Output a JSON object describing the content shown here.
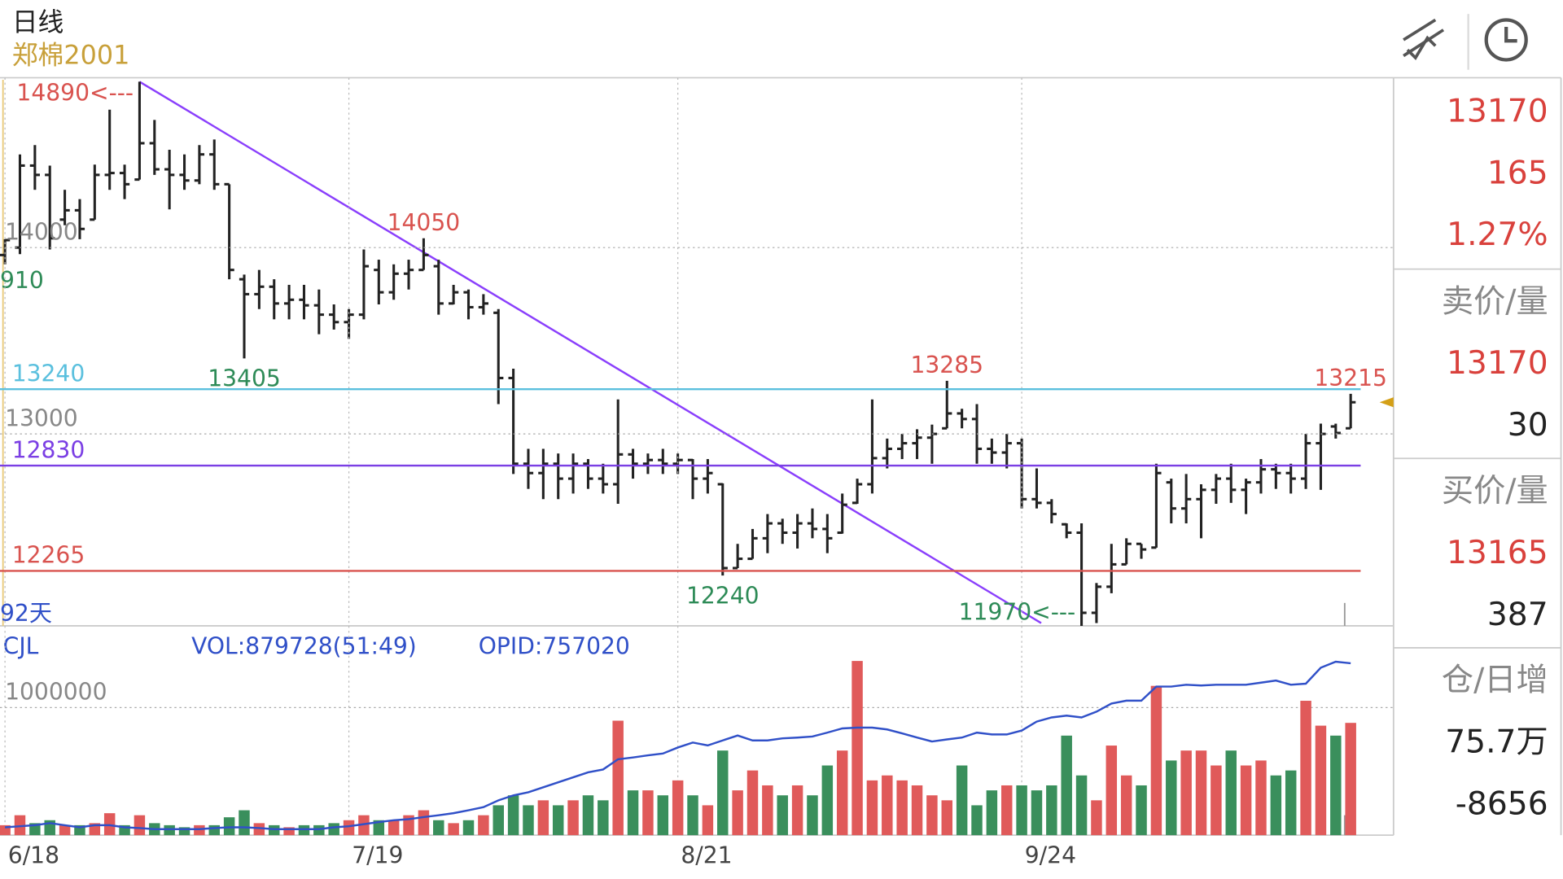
{
  "header": {
    "title": "日线",
    "symbol": "郑棉2001"
  },
  "chart_data": [
    {
      "type": "ohlc",
      "color": "#222222",
      "categories": [
        "6/18",
        null,
        null,
        null,
        null,
        null,
        null,
        null,
        null,
        null,
        null,
        null,
        null,
        null,
        null,
        null,
        null,
        null,
        null,
        null,
        null,
        null,
        null,
        "7/19",
        null,
        null,
        null,
        null,
        null,
        null,
        null,
        null,
        null,
        null,
        null,
        null,
        null,
        null,
        null,
        null,
        null,
        null,
        null,
        null,
        null,
        "8/21",
        null,
        null,
        null,
        null,
        null,
        null,
        null,
        null,
        null,
        null,
        null,
        null,
        null,
        null,
        null,
        null,
        null,
        null,
        null,
        null,
        null,
        null,
        "9/24",
        null,
        null,
        null,
        null,
        null,
        null,
        null,
        null,
        null,
        null,
        null,
        null,
        null,
        null,
        null,
        null,
        null,
        null,
        null,
        null,
        null,
        null
      ],
      "open": [
        13960,
        14000,
        14440,
        14390,
        14150,
        14200,
        14150,
        14390,
        14400,
        14365,
        14560,
        14420,
        14390,
        14360,
        14500,
        14340,
        13830,
        13750,
        13790,
        13700,
        13720,
        13690,
        13640,
        13600,
        13640,
        13880,
        13760,
        13860,
        13880,
        13900,
        13700,
        13760,
        13680,
        13650,
        13300,
        12840,
        12790,
        12840,
        12760,
        12840,
        12760,
        12730,
        12890,
        12840,
        12860,
        12840,
        12860,
        12760,
        12730,
        12280,
        12330,
        12440,
        12520,
        12470,
        12520,
        12490,
        12470,
        12630,
        12730,
        12870,
        12920,
        12950,
        12980,
        13030,
        13110,
        13080,
        12920,
        12900,
        12950,
        12650,
        12630,
        12515,
        12470,
        12040,
        12180,
        12300,
        12410,
        12390,
        12740,
        12600,
        12650,
        12700,
        12760,
        12700,
        12740,
        12810,
        12790,
        12760,
        12950,
        13040,
        13030
      ],
      "high": [
        14045,
        14500,
        14550,
        14440,
        14310,
        14260,
        14445,
        14740,
        14445,
        14890,
        14685,
        14525,
        14500,
        14550,
        14580,
        14340,
        13855,
        13880,
        13830,
        13800,
        13800,
        13775,
        13695,
        13670,
        13990,
        13935,
        13910,
        13935,
        14050,
        13935,
        13800,
        13775,
        13750,
        13670,
        13350,
        12920,
        12920,
        12895,
        12895,
        12865,
        12840,
        13185,
        12920,
        12895,
        12920,
        12895,
        12865,
        12865,
        12735,
        12410,
        12490,
        12570,
        12545,
        12570,
        12600,
        12570,
        12680,
        12760,
        13185,
        12975,
        13000,
        13025,
        13050,
        13285,
        13135,
        13160,
        12975,
        13000,
        12975,
        12815,
        12650,
        12520,
        12520,
        12200,
        12410,
        12440,
        12410,
        12840,
        12760,
        12785,
        12730,
        12785,
        12840,
        12760,
        12865,
        12840,
        12840,
        13000,
        13055,
        13055,
        13215
      ],
      "low": [
        13910,
        13965,
        14310,
        13990,
        14120,
        14045,
        14150,
        14310,
        14260,
        14365,
        14390,
        14205,
        14310,
        14340,
        14310,
        13830,
        13405,
        13670,
        13615,
        13615,
        13615,
        13535,
        13560,
        13510,
        13615,
        13695,
        13720,
        13775,
        13880,
        13640,
        13695,
        13615,
        13640,
        13160,
        12785,
        12705,
        12650,
        12650,
        12680,
        12705,
        12680,
        12625,
        12760,
        12785,
        12785,
        12785,
        12650,
        12680,
        12240,
        12280,
        12330,
        12360,
        12410,
        12385,
        12440,
        12360,
        12465,
        12625,
        12680,
        12815,
        12865,
        12865,
        12840,
        13030,
        13030,
        12840,
        12840,
        12815,
        12600,
        12600,
        12520,
        12440,
        11970,
        11985,
        12145,
        12300,
        12330,
        12390,
        12520,
        12520,
        12440,
        12625,
        12630,
        12570,
        12680,
        12705,
        12680,
        12705,
        12700,
        12975,
        13030
      ],
      "close": [
        14040,
        14440,
        14390,
        14050,
        14200,
        14100,
        14390,
        14400,
        14340,
        14560,
        14420,
        14390,
        14360,
        14500,
        14340,
        13880,
        13750,
        13790,
        13700,
        13720,
        13690,
        13640,
        13600,
        13640,
        13900,
        13760,
        13860,
        13880,
        13960,
        13700,
        13760,
        13680,
        13700,
        13300,
        12840,
        12790,
        12840,
        12760,
        12840,
        12760,
        12730,
        12890,
        12840,
        12860,
        12840,
        12860,
        12760,
        12790,
        12280,
        12330,
        12440,
        12520,
        12470,
        12520,
        12490,
        12440,
        12620,
        12730,
        12870,
        12920,
        12950,
        12980,
        13000,
        13110,
        13080,
        12920,
        12900,
        12950,
        12650,
        12630,
        12570,
        12470,
        12040,
        12180,
        12300,
        12410,
        12380,
        12790,
        12600,
        12650,
        12700,
        12760,
        12700,
        12740,
        12810,
        12790,
        12760,
        12950,
        13000,
        13005,
        13170
      ],
      "ylim": [
        11970,
        14890
      ],
      "yticks": [
        13000,
        14000
      ],
      "grid": true,
      "tick_color": "#888888",
      "hlines": [
        {
          "value": 13240,
          "color": "#5bc0de"
        },
        {
          "value": 12830,
          "color": "#7b3fe4"
        },
        {
          "value": 12265,
          "color": "#d9534f"
        }
      ],
      "trend_line": {
        "x": [
          9,
          69.3
        ],
        "y": [
          14890,
          11985
        ],
        "color": "#8a3ffc"
      },
      "annotations": [
        {
          "x": 9,
          "value": 14890,
          "label": "14890<---",
          "color": "#d9534f"
        },
        {
          "x": 28,
          "value": 14050,
          "label": "14050",
          "color": "#d9534f"
        },
        {
          "x": 16,
          "value": 13405,
          "label": "13405",
          "color": "#2e8b57"
        },
        {
          "x": 63,
          "value": 13285,
          "label": "13285",
          "color": "#d9534f"
        },
        {
          "x": 90,
          "value": 13215,
          "label": "13215",
          "color": "#d9534f"
        },
        {
          "x": 48,
          "value": 12240,
          "label": "12240",
          "color": "#2e8b57"
        },
        {
          "x": 72,
          "value": 11970,
          "label": "11970<---",
          "color": "#2e8b57"
        }
      ],
      "note": "910",
      "days_label": "92天",
      "price_marker_color": "#d4a017"
    },
    {
      "type": "volume",
      "title": "CJL",
      "vol_label": "VOL:879728(51:49)",
      "oi_label": "OPID:757020",
      "up_color": "#e05a5a",
      "down_color": "#3a8f5c",
      "values": [
        78000,
        156000,
        94000,
        117000,
        78000,
        78000,
        94000,
        172000,
        78000,
        156000,
        94000,
        78000,
        62000,
        78000,
        78000,
        140000,
        195000,
        94000,
        78000,
        62000,
        78000,
        78000,
        94000,
        117000,
        156000,
        117000,
        117000,
        156000,
        195000,
        117000,
        94000,
        117000,
        156000,
        234000,
        312000,
        234000,
        273000,
        234000,
        273000,
        312000,
        273000,
        897000,
        351000,
        351000,
        312000,
        429000,
        312000,
        234000,
        663000,
        351000,
        507000,
        390000,
        312000,
        390000,
        312000,
        546000,
        663000,
        1365000,
        429000,
        468000,
        429000,
        390000,
        312000,
        273000,
        546000,
        234000,
        351000,
        390000,
        390000,
        351000,
        390000,
        780000,
        468000,
        273000,
        702000,
        468000,
        390000,
        1170000,
        585000,
        663000,
        663000,
        546000,
        663000,
        546000,
        585000,
        468000,
        507000,
        1053000,
        858000,
        780000,
        879728
      ],
      "ylim": [
        0,
        1640000
      ],
      "yticks": [
        1000000
      ],
      "grid": true,
      "series": [
        {
          "name": "OPID",
          "color": "#3050c8",
          "axis": "y2",
          "values": [
            130000,
            134000,
            138000,
            146000,
            138000,
            130000,
            138000,
            138000,
            130000,
            127000,
            123000,
            123000,
            123000,
            123000,
            127000,
            130000,
            130000,
            127000,
            123000,
            123000,
            123000,
            123000,
            130000,
            134000,
            142000,
            150000,
            157000,
            161000,
            169000,
            176000,
            184000,
            195000,
            207000,
            233000,
            252000,
            264000,
            283000,
            302000,
            321000,
            340000,
            351000,
            390000,
            397000,
            405000,
            412000,
            435000,
            454000,
            443000,
            462000,
            481000,
            462000,
            462000,
            470000,
            473000,
            477000,
            492000,
            508000,
            511000,
            511000,
            504000,
            489000,
            473000,
            458000,
            466000,
            473000,
            492000,
            485000,
            485000,
            500000,
            534000,
            550000,
            557000,
            550000,
            572000,
            603000,
            614000,
            614000,
            668000,
            668000,
            675000,
            672000,
            675000,
            675000,
            675000,
            683000,
            691000,
            675000,
            679000,
            740000,
            763000,
            757020
          ]
        }
      ],
      "y2lim": [
        100000,
        900000
      ]
    }
  ],
  "quote": {
    "price": 13170,
    "change": 165,
    "pct": "1.27%",
    "ask_label": "卖价/量",
    "ask": 13170,
    "ask_vol": 30,
    "bid_label": "买价/量",
    "bid": 13165,
    "bid_vol": 387,
    "oi_label": "仓/日增",
    "oi": "75.7万",
    "oi_change": -8656
  }
}
